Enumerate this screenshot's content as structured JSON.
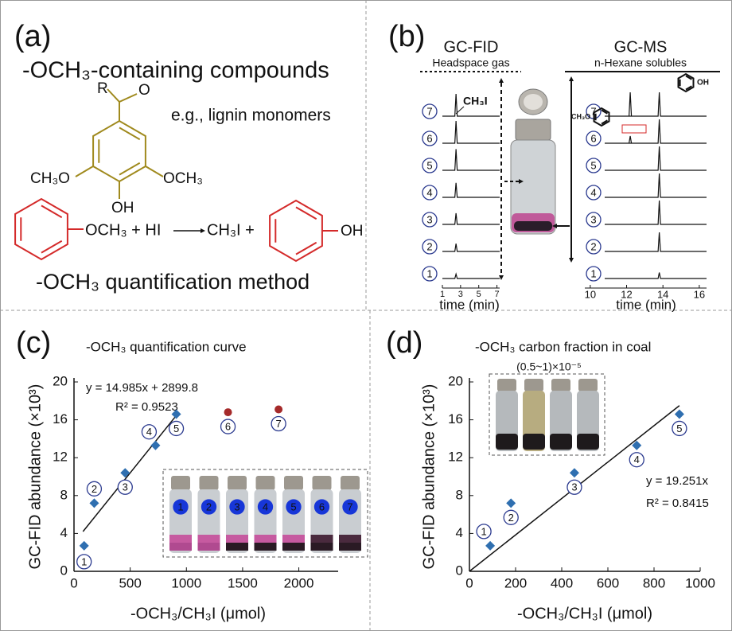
{
  "panel_a": {
    "label": "(a)",
    "heading": "-OCH₃-containing compounds",
    "example": "e.g., lignin monomers",
    "structure": {
      "r": "R",
      "o": "O",
      "left": "CH₃O",
      "right": "OCH₃",
      "hydroxyl": "OH"
    },
    "reaction": {
      "reactant": "OCH₃ + HI",
      "product": "CH₃I +",
      "phenol": "OH"
    },
    "method": "-OCH₃ quantification method"
  },
  "panel_b": {
    "label": "(b)",
    "fid_title": "GC-FID",
    "fid_subtitle": "Headspace gas",
    "ms_title": "GC-MS",
    "ms_subtitle": "n-Hexane solubles",
    "peak_label": "CH₃I",
    "ms_left_group": "CH₃O",
    "ms_right_group": "OH",
    "samples": [
      "1",
      "2",
      "3",
      "4",
      "5",
      "6",
      "7"
    ],
    "fid_xlim": [
      1,
      7.3
    ],
    "fid_xticks": [
      1,
      3,
      5,
      7
    ],
    "ms_xlim": [
      9.7,
      16.4
    ],
    "ms_xticks": [
      10,
      12,
      14,
      16
    ],
    "x_label": "time (min)",
    "fid_peak_time": 2.5,
    "ms_peak_times": [
      12.2,
      13.8
    ],
    "fid_relative_heights": [
      0.2,
      0.35,
      0.5,
      0.65,
      0.95,
      1,
      1
    ],
    "ms_relative_heights": [
      0.25,
      0.8,
      1,
      1,
      1,
      1,
      1
    ],
    "ms_early_relative_heights": [
      null,
      null,
      null,
      null,
      null,
      0.3,
      1
    ]
  },
  "chart_data": [
    {
      "type": "scatter",
      "panel_label": "(c)",
      "title": "-OCH₃ quantification curve",
      "x_label": "-OCH₃/CH₃I (μmol)",
      "y_label": "GC-FID abundance (×10³)",
      "xlim": [
        0,
        2350
      ],
      "xticks": [
        0,
        500,
        1000,
        1500,
        2000
      ],
      "ylim": [
        0,
        20
      ],
      "yticks": [
        0,
        4,
        8,
        12,
        16,
        20
      ],
      "series": [
        {
          "color": "#2f6fb0",
          "x": [
            90,
            180,
            455,
            725,
            910
          ],
          "values": [
            2.7,
            7.2,
            10.4,
            13.3,
            16.6
          ],
          "point_labels": [
            "1",
            "2",
            "3",
            "4",
            "5"
          ]
        },
        {
          "color": "#a52a2a",
          "x": [
            1370,
            1820
          ],
          "values": [
            16.8,
            17.1
          ],
          "point_labels": [
            "6",
            "7"
          ]
        }
      ],
      "fit": {
        "x": [
          80,
          920
        ],
        "values": [
          4.2,
          16.6
        ]
      },
      "equation": "y = 14.985x + 2899.8",
      "r_squared": "R² = 0.9523",
      "inset_labels": [
        "1",
        "2",
        "3",
        "4",
        "5",
        "6",
        "7"
      ]
    },
    {
      "type": "scatter",
      "panel_label": "(d)",
      "title": "-OCH₃ carbon fraction in coal",
      "subtitle": "(0.5~1)×10⁻⁵",
      "x_label": "-OCH₃/CH₃I (μmol)",
      "y_label": "GC-FID abundance (×10³)",
      "xlim": [
        0,
        1000
      ],
      "xticks": [
        0,
        200,
        400,
        600,
        800,
        1000
      ],
      "ylim": [
        0,
        20
      ],
      "yticks": [
        0,
        4,
        8,
        12,
        16,
        20
      ],
      "series": [
        {
          "color": "#2f6fb0",
          "x": [
            90,
            180,
            455,
            725,
            910
          ],
          "values": [
            2.7,
            7.2,
            10.4,
            13.3,
            16.6
          ],
          "point_labels": [
            "1",
            "2",
            "3",
            "4",
            "5"
          ]
        }
      ],
      "fit": {
        "x": [
          0,
          910
        ],
        "values": [
          0,
          17.5
        ]
      },
      "equation": "y = 19.251x",
      "r_squared": "R² = 0.8415"
    }
  ]
}
